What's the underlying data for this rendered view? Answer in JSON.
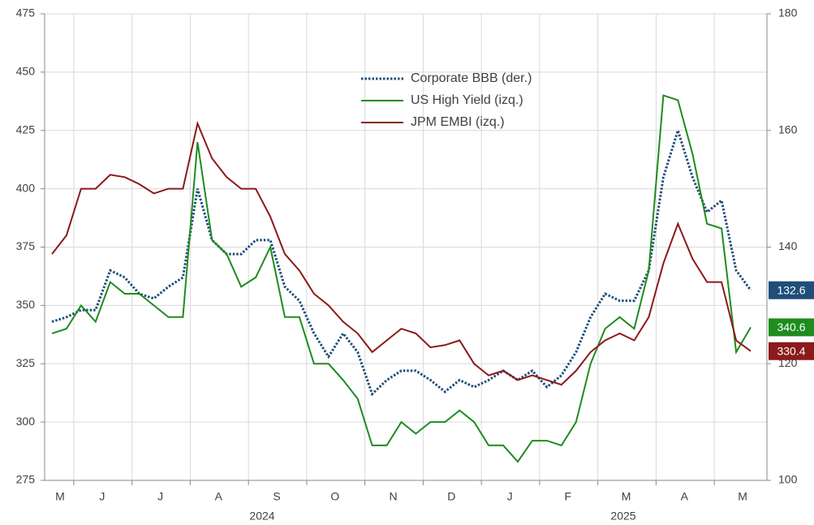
{
  "chart_data": {
    "type": "line",
    "categories": [
      "M",
      null,
      null,
      "J",
      null,
      null,
      null,
      "J",
      null,
      null,
      null,
      "A",
      null,
      null,
      null,
      "S",
      null,
      null,
      null,
      "O",
      null,
      null,
      null,
      "N",
      null,
      null,
      null,
      "D",
      null,
      null,
      null,
      "J",
      null,
      null,
      null,
      "F",
      null,
      null,
      null,
      "M",
      null,
      null,
      null,
      "A",
      null,
      null,
      null,
      "M",
      null
    ],
    "year_labels": [
      "2024",
      "2025"
    ],
    "series": [
      {
        "name": "Corporate BBB (der.)",
        "color": "#1f4e79",
        "style": "dotted",
        "axis": "y2",
        "values": [
          127.2,
          128,
          129.2,
          129.2,
          136,
          134.8,
          132,
          131.2,
          133.2,
          134.8,
          150,
          141.2,
          138.8,
          138.8,
          141.2,
          141.2,
          133.2,
          130.8,
          125.2,
          121.2,
          125.2,
          122,
          114.8,
          117.2,
          118.8,
          118.8,
          117.2,
          115.2,
          117.2,
          116,
          117.2,
          118.8,
          117.2,
          118.8,
          116,
          118,
          122,
          128,
          132,
          130.8,
          130.8,
          136,
          152,
          160,
          152,
          146,
          148,
          136,
          132.6
        ]
      },
      {
        "name": "US High Yield (izq.)",
        "color": "#1e8c1e",
        "style": "solid",
        "values": [
          338,
          340,
          350,
          343,
          360,
          355,
          355,
          350,
          345,
          345,
          420,
          378,
          372,
          358,
          362,
          375,
          345,
          345,
          325,
          325,
          318,
          310,
          290,
          290,
          300,
          295,
          300,
          300,
          305,
          300,
          290,
          290,
          283,
          292,
          292,
          290,
          300,
          325,
          340,
          345,
          340,
          365,
          440,
          438,
          415,
          385,
          383,
          330,
          340.6
        ]
      },
      {
        "name": "JPM EMBI (izq.)",
        "color": "#8b1a1a",
        "style": "solid",
        "values": [
          372,
          380,
          400,
          400,
          406,
          405,
          402,
          398,
          400,
          400,
          428,
          413,
          405,
          400,
          400,
          388,
          372,
          365,
          355,
          350,
          343,
          338,
          330,
          335,
          340,
          338,
          332,
          333,
          335,
          325,
          320,
          322,
          318,
          320,
          318,
          316,
          322,
          330,
          335,
          338,
          335,
          345,
          368,
          385,
          370,
          360,
          360,
          335,
          330.4
        ]
      }
    ],
    "ylim": [
      275,
      475
    ],
    "yticks": [
      275,
      300,
      325,
      350,
      375,
      400,
      425,
      450,
      475
    ],
    "y2lim": [
      100,
      180
    ],
    "y2ticks": [
      100,
      120,
      140,
      160,
      180
    ],
    "grid": true
  }
}
